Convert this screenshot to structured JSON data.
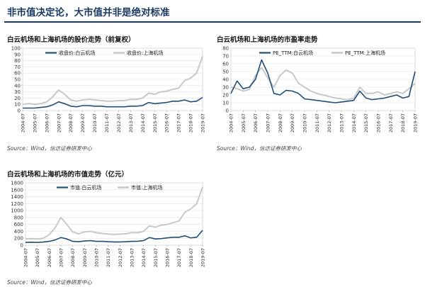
{
  "page": {
    "title": "非市值决定论，大市值并非是绝对标准"
  },
  "panels": [
    {
      "title": "白云机场和上海机场的股价走势（前复权）",
      "source": "Source：Wind，信达证券研发中心"
    },
    {
      "title": "白云机场和上海机场的市盈率走势",
      "source": "Source：Wind，信达证券研发中心"
    },
    {
      "title": "白云机场和上海机场的市值走势（亿元）",
      "source": "Source：Wind，信达证券研发中心"
    }
  ],
  "colors": {
    "baiyun": "#1f4e79",
    "shanghai": "#c8c8c8",
    "title": "#1a3a63"
  },
  "chart_data": [
    {
      "type": "line",
      "title": "白云机场和上海机场的股价走势（前复权）",
      "x": [
        "2004-07",
        "2005-01",
        "2005-07",
        "2006-01",
        "2006-07",
        "2007-01",
        "2007-07",
        "2008-01",
        "2008-07",
        "2009-01",
        "2009-07",
        "2010-01",
        "2010-07",
        "2011-01",
        "2011-07",
        "2012-01",
        "2012-07",
        "2013-01",
        "2013-07",
        "2014-01",
        "2014-07",
        "2015-01",
        "2015-07",
        "2016-01",
        "2016-07",
        "2017-01",
        "2017-07",
        "2018-01",
        "2018-07",
        "2019-01",
        "2019-07"
      ],
      "xticks": [
        "2004-07",
        "2005-07",
        "2006-07",
        "2007-07",
        "2008-07",
        "2009-07",
        "2010-07",
        "2011-07",
        "2012-07",
        "2013-07",
        "2014-07",
        "2015-07",
        "2016-07",
        "2017-07",
        "2018-07",
        "2019-07"
      ],
      "ylim": [
        0,
        100
      ],
      "yticks": [
        0,
        10,
        20,
        30,
        40,
        50,
        60,
        70,
        80,
        90,
        100
      ],
      "legend_position": "top",
      "series": [
        {
          "name": "收盘价:白云机场",
          "values": [
            4,
            4,
            4,
            5,
            6,
            9,
            14,
            11,
            7,
            6,
            8,
            8,
            7,
            7,
            6,
            6,
            6,
            6,
            7,
            7,
            8,
            13,
            11,
            12,
            13,
            15,
            15,
            17,
            14,
            15,
            21
          ]
        },
        {
          "name": "收盘价:上海机场",
          "values": [
            10,
            11,
            10,
            11,
            14,
            22,
            33,
            26,
            17,
            15,
            17,
            18,
            17,
            16,
            15,
            15,
            16,
            16,
            18,
            18,
            20,
            28,
            26,
            30,
            31,
            34,
            36,
            48,
            52,
            60,
            87
          ]
        }
      ]
    },
    {
      "type": "line",
      "title": "白云机场和上海机场的市盈率走势",
      "x": [
        "2004-07",
        "2005-01",
        "2005-07",
        "2006-01",
        "2006-07",
        "2007-01",
        "2007-07",
        "2008-01",
        "2008-07",
        "2009-01",
        "2009-07",
        "2010-01",
        "2010-07",
        "2011-01",
        "2011-07",
        "2012-01",
        "2012-07",
        "2013-01",
        "2013-07",
        "2014-01",
        "2014-07",
        "2015-01",
        "2015-07",
        "2016-01",
        "2016-07",
        "2017-01",
        "2017-07",
        "2018-01",
        "2018-07",
        "2019-01",
        "2019-07"
      ],
      "xticks": [
        "2004-07",
        "2005-07",
        "2006-07",
        "2007-07",
        "2008-07",
        "2009-07",
        "2010-07",
        "2011-07",
        "2012-07",
        "2013-07",
        "2014-07",
        "2015-07",
        "2016-07",
        "2017-07",
        "2018-07",
        "2019-07"
      ],
      "ylim": [
        0,
        80
      ],
      "yticks": [
        0,
        10,
        20,
        30,
        40,
        50,
        60,
        70,
        80
      ],
      "legend_position": "top",
      "series": [
        {
          "name": "PE_TTM:白云机场",
          "values": [
            22,
            38,
            28,
            30,
            40,
            65,
            48,
            22,
            20,
            26,
            25,
            22,
            15,
            14,
            13,
            12,
            11,
            10,
            11,
            12,
            13,
            25,
            16,
            14,
            15,
            16,
            18,
            20,
            16,
            18,
            50
          ]
        },
        {
          "name": "PE_TTM:上海机场",
          "values": [
            30,
            28,
            25,
            27,
            45,
            55,
            42,
            30,
            45,
            52,
            48,
            35,
            30,
            25,
            22,
            20,
            18,
            16,
            15,
            14,
            16,
            30,
            22,
            22,
            24,
            20,
            22,
            24,
            22,
            28,
            35
          ]
        }
      ]
    },
    {
      "type": "line",
      "title": "白云机场和上海机场的市值走势（亿元）",
      "x": [
        "2004-07",
        "2005-01",
        "2005-07",
        "2006-01",
        "2006-07",
        "2007-01",
        "2007-07",
        "2008-01",
        "2008-07",
        "2009-01",
        "2009-07",
        "2010-01",
        "2010-07",
        "2011-01",
        "2011-07",
        "2012-01",
        "2012-07",
        "2013-01",
        "2013-07",
        "2014-01",
        "2014-07",
        "2015-01",
        "2015-07",
        "2016-01",
        "2016-07",
        "2017-01",
        "2017-07",
        "2018-01",
        "2018-07",
        "2019-01",
        "2019-07"
      ],
      "xticks": [
        "2004-07",
        "2005-07",
        "2006-07",
        "2007-07",
        "2008-07",
        "2009-07",
        "2010-07",
        "2011-07",
        "2012-07",
        "2013-07",
        "2014-07",
        "2015-07",
        "2016-07",
        "2017-07",
        "2018-07",
        "2019-07"
      ],
      "ylim": [
        0,
        1800
      ],
      "yticks": [
        0,
        200,
        400,
        600,
        800,
        1000,
        1200,
        1400,
        1600,
        1800
      ],
      "legend_position": "top",
      "series": [
        {
          "name": "市值:白云机场",
          "values": [
            80,
            85,
            80,
            90,
            110,
            150,
            220,
            180,
            110,
            100,
            120,
            130,
            110,
            110,
            100,
            95,
            95,
            100,
            110,
            115,
            130,
            220,
            180,
            190,
            210,
            230,
            230,
            270,
            210,
            230,
            430
          ]
        },
        {
          "name": "市值:上海机场",
          "values": [
            180,
            190,
            180,
            200,
            300,
            500,
            800,
            600,
            380,
            330,
            380,
            400,
            360,
            340,
            320,
            310,
            320,
            330,
            360,
            360,
            400,
            560,
            520,
            580,
            600,
            650,
            700,
            950,
            1050,
            1200,
            1680
          ]
        }
      ]
    }
  ]
}
